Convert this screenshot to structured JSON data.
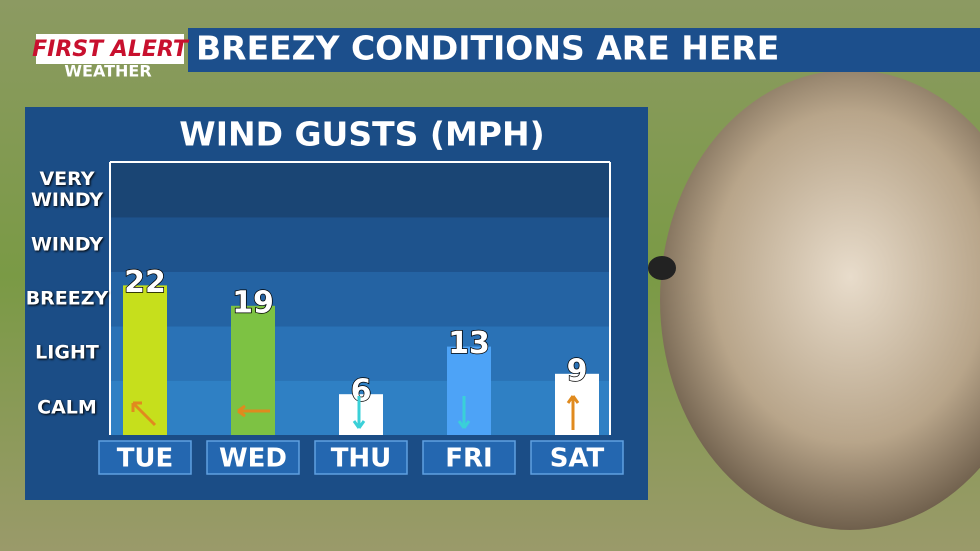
{
  "brand": {
    "logo": "FIRST ALERT",
    "sub": "WEATHER"
  },
  "headline": "BREEZY CONDITIONS ARE HERE",
  "chart_data": {
    "type": "bar",
    "title": "WIND GUSTS (MPH)",
    "categories": [
      "TUE",
      "WED",
      "THU",
      "FRI",
      "SAT"
    ],
    "values": [
      22,
      19,
      6,
      13,
      9
    ],
    "colors": [
      "#c6df1c",
      "#7dc243",
      "#ffffff",
      "#4da3f7",
      "#ffffff"
    ],
    "ylim": [
      0,
      40
    ],
    "yticks": [
      {
        "value": 4,
        "label": "CALM"
      },
      {
        "value": 12,
        "label": "LIGHT"
      },
      {
        "value": 20,
        "label": "BREEZY"
      },
      {
        "value": 28,
        "label": "WINDY"
      },
      {
        "value": 36,
        "label": "VERY WINDY"
      }
    ],
    "band_colors": [
      "#2f80c4",
      "#2a72b6",
      "#2463a3",
      "#1e538d",
      "#1a4574"
    ]
  }
}
